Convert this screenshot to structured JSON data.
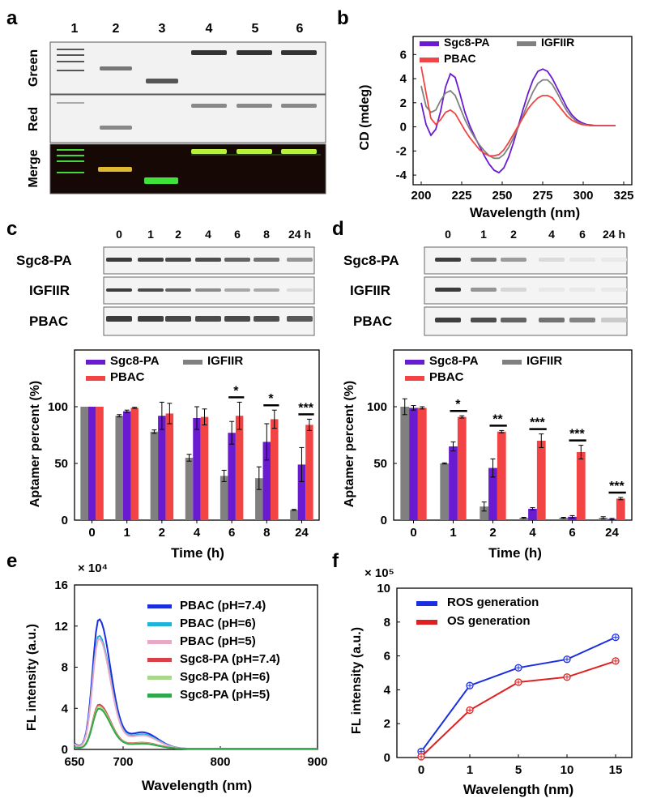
{
  "panel_letters": {
    "a": "a",
    "b": "b",
    "c": "c",
    "d": "d",
    "e": "e",
    "f": "f"
  },
  "panel_a": {
    "lane_labels": [
      "1",
      "2",
      "3",
      "4",
      "5",
      "6"
    ],
    "row_labels": [
      "Green",
      "Red",
      "Merge"
    ]
  },
  "panel_c_gel": {
    "time_labels": [
      "0",
      "1",
      "2",
      "4",
      "6",
      "8",
      "24 h"
    ],
    "row_labels": [
      "Sgc8-PA",
      "IGFIIR",
      "PBAC"
    ]
  },
  "panel_d_gel": {
    "time_labels": [
      "0",
      "1",
      "2",
      "4",
      "6",
      "24 h"
    ],
    "row_labels": [
      "Sgc8-PA",
      "IGFIIR",
      "PBAC"
    ]
  },
  "colors": {
    "igfiir": "#808080",
    "sgc8": "#6a1bd1",
    "pbac": "#f24444",
    "ros": "#1a2ee0",
    "os": "#e02020"
  },
  "chart_data": [
    {
      "id": "b",
      "type": "line",
      "xlabel": "Wavelength (nm)",
      "ylabel": "CD (mdeg)",
      "xlim": [
        195,
        330
      ],
      "ylim": [
        -4.8,
        7.5
      ],
      "xticks": [
        200,
        225,
        250,
        275,
        300,
        325
      ],
      "yticks": [
        -4,
        -2,
        0,
        2,
        4,
        6
      ],
      "legend_position": "top",
      "series": [
        {
          "name": "Sgc8-PA",
          "color": "#6a1bd1",
          "x": [
            200,
            203,
            206,
            209,
            212,
            215,
            218,
            221,
            224,
            227,
            230,
            233,
            236,
            239,
            242,
            245,
            248,
            251,
            254,
            257,
            260,
            263,
            266,
            269,
            272,
            275,
            278,
            281,
            284,
            287,
            290,
            293,
            296,
            299,
            302,
            305,
            308,
            311,
            314,
            317,
            320
          ],
          "y": [
            2.0,
            0.2,
            -0.7,
            -0.2,
            1.3,
            3.3,
            4.4,
            4.1,
            2.7,
            1.2,
            0.1,
            -0.8,
            -1.6,
            -2.4,
            -3.1,
            -3.6,
            -3.8,
            -3.4,
            -2.5,
            -1.3,
            0.1,
            1.5,
            2.8,
            3.9,
            4.6,
            4.8,
            4.6,
            4.0,
            3.2,
            2.4,
            1.6,
            1.0,
            0.6,
            0.35,
            0.2,
            0.15,
            0.1,
            0.1,
            0.1,
            0.1,
            0.1
          ]
        },
        {
          "name": "IGFIIR",
          "color": "#808080",
          "x": [
            200,
            203,
            206,
            209,
            212,
            215,
            218,
            221,
            224,
            227,
            230,
            233,
            236,
            239,
            242,
            245,
            248,
            251,
            254,
            257,
            260,
            263,
            266,
            269,
            272,
            275,
            278,
            281,
            284,
            287,
            290,
            293,
            296,
            299,
            302,
            305,
            308,
            311,
            314,
            317,
            320
          ],
          "y": [
            3.4,
            1.7,
            1.2,
            1.4,
            2.2,
            2.8,
            3.0,
            2.6,
            1.6,
            0.6,
            -0.2,
            -0.9,
            -1.5,
            -2.0,
            -2.4,
            -2.6,
            -2.6,
            -2.3,
            -1.7,
            -0.9,
            0.0,
            1.0,
            2.0,
            2.9,
            3.6,
            3.9,
            3.9,
            3.5,
            2.8,
            2.0,
            1.3,
            0.8,
            0.45,
            0.25,
            0.15,
            0.1,
            0.1,
            0.1,
            0.1,
            0.1,
            0.1
          ]
        },
        {
          "name": "PBAC",
          "color": "#f24444",
          "x": [
            200,
            203,
            206,
            209,
            212,
            215,
            218,
            221,
            224,
            227,
            230,
            233,
            236,
            239,
            242,
            245,
            248,
            251,
            254,
            257,
            260,
            263,
            266,
            269,
            272,
            275,
            278,
            281,
            284,
            287,
            290,
            293,
            296,
            299,
            302,
            305,
            308,
            311,
            314,
            317,
            320
          ],
          "y": [
            5.0,
            2.8,
            0.7,
            0.2,
            0.6,
            1.2,
            1.4,
            1.1,
            0.4,
            -0.3,
            -0.9,
            -1.4,
            -1.9,
            -2.2,
            -2.4,
            -2.4,
            -2.3,
            -1.9,
            -1.3,
            -0.6,
            0.1,
            0.8,
            1.5,
            2.0,
            2.4,
            2.6,
            2.6,
            2.4,
            1.9,
            1.4,
            0.9,
            0.55,
            0.35,
            0.2,
            0.15,
            0.1,
            0.1,
            0.1,
            0.1,
            0.1,
            0.1
          ]
        }
      ]
    },
    {
      "id": "c",
      "type": "bar",
      "xlabel": "Time (h)",
      "ylabel": "Aptamer percent (%)",
      "ylim": [
        0,
        150
      ],
      "yticks": [
        0,
        50,
        100
      ],
      "legend_position": "top",
      "categories": [
        "0",
        "1",
        "2",
        "4",
        "6",
        "8",
        "24"
      ],
      "series": [
        {
          "name": "IGFIIR",
          "color": "#808080",
          "values": [
            100,
            92,
            78,
            55,
            39,
            37,
            9
          ],
          "errors": [
            0,
            1,
            1.5,
            3,
            5,
            10,
            0.5
          ]
        },
        {
          "name": "Sgc8-PA",
          "color": "#6a1bd1",
          "values": [
            100,
            96,
            92,
            90,
            77,
            69,
            49
          ],
          "errors": [
            0,
            1,
            12,
            10,
            10,
            16,
            15
          ]
        },
        {
          "name": "PBAC",
          "color": "#f24444",
          "values": [
            100,
            99,
            94,
            91,
            92,
            89,
            84
          ],
          "errors": [
            0,
            0.5,
            9,
            7,
            12,
            8,
            5
          ]
        }
      ],
      "significance": [
        {
          "category": "6",
          "label": "*"
        },
        {
          "category": "8",
          "label": "*"
        },
        {
          "category": "24",
          "label": "***"
        }
      ]
    },
    {
      "id": "d",
      "type": "bar",
      "xlabel": "Time (h)",
      "ylabel": "Aptamer percent (%)",
      "ylim": [
        0,
        150
      ],
      "yticks": [
        0,
        50,
        100
      ],
      "legend_position": "top",
      "categories": [
        "0",
        "1",
        "2",
        "4",
        "6",
        "24"
      ],
      "series": [
        {
          "name": "IGFIIR",
          "color": "#808080",
          "values": [
            100,
            50,
            12,
            2,
            2,
            2
          ],
          "errors": [
            7,
            0.5,
            4,
            0.5,
            0.5,
            1
          ]
        },
        {
          "name": "Sgc8-PA",
          "color": "#6a1bd1",
          "values": [
            99,
            65,
            46,
            10,
            3,
            1
          ],
          "errors": [
            2,
            4,
            8,
            1,
            1,
            0.5
          ]
        },
        {
          "name": "PBAC",
          "color": "#f24444",
          "values": [
            99,
            91,
            78,
            70,
            60,
            19
          ],
          "errors": [
            1,
            1,
            1,
            6,
            6,
            1
          ]
        }
      ],
      "significance": [
        {
          "category": "1",
          "label": "*"
        },
        {
          "category": "2",
          "label": "**"
        },
        {
          "category": "4",
          "label": "***"
        },
        {
          "category": "6",
          "label": "***"
        },
        {
          "category": "24",
          "label": "***"
        }
      ]
    },
    {
      "id": "e",
      "type": "line",
      "xlabel": "Wavelength (nm)",
      "ylabel": "FL intensity (a.u.)",
      "multiplier": "× 10⁴",
      "xlim": [
        650,
        900
      ],
      "ylim": [
        0,
        16
      ],
      "xticks": [
        650,
        700,
        800,
        900
      ],
      "yticks": [
        0,
        4,
        8,
        12,
        16
      ],
      "legend_position": "top-right",
      "series": [
        {
          "name": "PBAC (pH=7.4)",
          "color": "#1a2ee0",
          "peak": 12.6,
          "shoulder": 1.6
        },
        {
          "name": "PBAC (pH=6)",
          "color": "#1eb3d9",
          "peak": 11.0,
          "shoulder": 1.4
        },
        {
          "name": "PBAC (pH=5)",
          "color": "#e8a9c7",
          "peak": 10.7,
          "shoulder": 1.3
        },
        {
          "name": "Sgc8-PA (pH=7.4)",
          "color": "#d9404a",
          "peak": 4.3,
          "shoulder": 0.6
        },
        {
          "name": "Sgc8-PA (pH=6)",
          "color": "#a8d98a",
          "peak": 4.1,
          "shoulder": 0.55
        },
        {
          "name": "Sgc8-PA (pH=5)",
          "color": "#2ea84a",
          "peak": 3.9,
          "shoulder": 0.5
        }
      ]
    },
    {
      "id": "f",
      "type": "line",
      "xlabel": "Wavelength (nm)",
      "ylabel": "FL intensity (a.u.)",
      "multiplier": "× 10⁵",
      "categories": [
        "0",
        "1",
        "5",
        "10",
        "15"
      ],
      "ylim": [
        0,
        10
      ],
      "yticks": [
        0,
        2,
        4,
        6,
        8,
        10
      ],
      "legend_position": "top-left",
      "series": [
        {
          "name": "ROS generation",
          "color": "#1a2ee0",
          "values": [
            0.35,
            4.25,
            5.3,
            5.8,
            7.1
          ]
        },
        {
          "name": "OS generation",
          "color": "#e02020",
          "values": [
            0.05,
            2.8,
            4.45,
            4.75,
            5.7
          ]
        }
      ]
    }
  ]
}
